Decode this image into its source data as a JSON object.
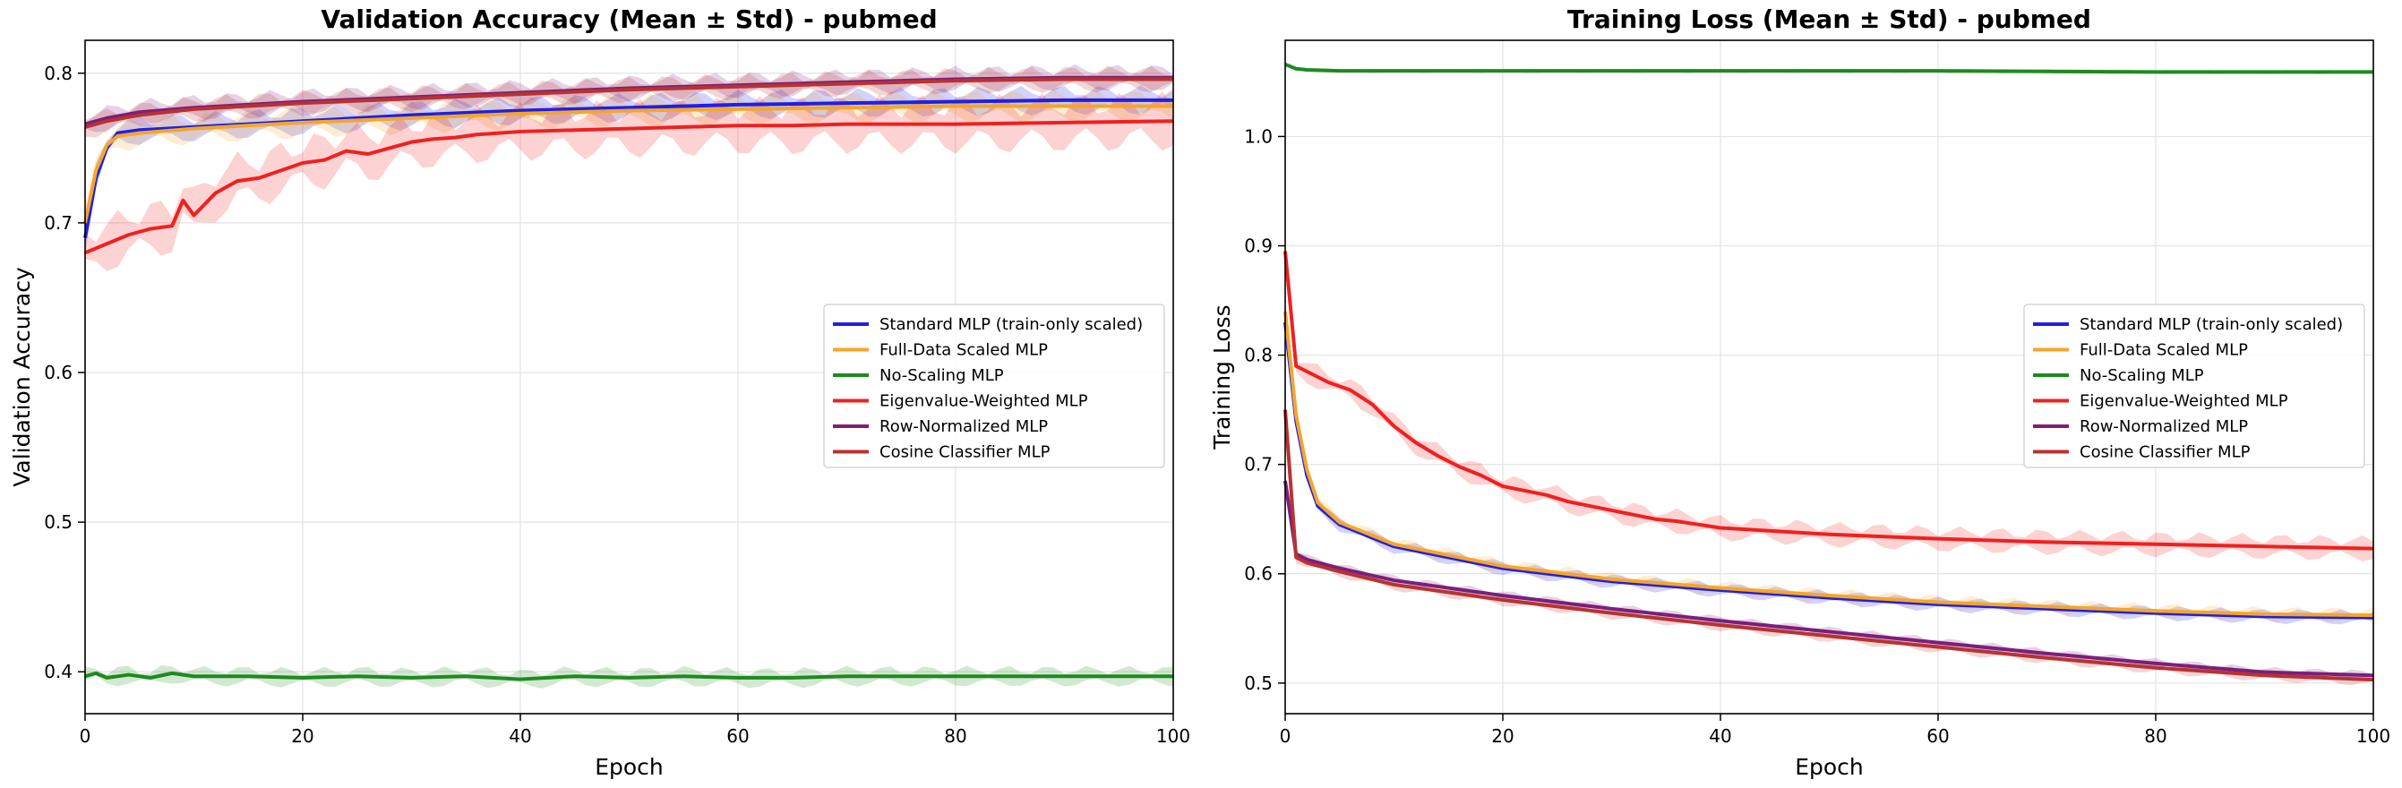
{
  "chart_data": [
    {
      "type": "line",
      "title": "Validation Accuracy (Mean ± Std) - pubmed",
      "xlabel": "Epoch",
      "ylabel": "Validation Accuracy",
      "xlim": [
        0,
        100
      ],
      "ylim": [
        0.372,
        0.822
      ],
      "xticks": [
        0,
        20,
        40,
        60,
        80,
        100
      ],
      "yticks": [
        0.4,
        0.5,
        0.6,
        0.7,
        0.8
      ],
      "xtick_labels": [
        "0",
        "20",
        "40",
        "60",
        "80",
        "100"
      ],
      "ytick_labels": [
        "0.4",
        "0.5",
        "0.6",
        "0.7",
        "0.8"
      ],
      "grid": true,
      "legend_position": "center-right",
      "series": [
        {
          "name": "Standard MLP (train-only scaled)",
          "color": "#1f1fe6",
          "points": [
            [
              0,
              0.69
            ],
            [
              1,
              0.73
            ],
            [
              2,
              0.75
            ],
            [
              3,
              0.76
            ],
            [
              5,
              0.762
            ],
            [
              10,
              0.764
            ],
            [
              20,
              0.768
            ],
            [
              30,
              0.772
            ],
            [
              40,
              0.775
            ],
            [
              50,
              0.777
            ],
            [
              60,
              0.779
            ],
            [
              70,
              0.78
            ],
            [
              80,
              0.781
            ],
            [
              90,
              0.782
            ],
            [
              100,
              0.782
            ]
          ],
          "std": 0.01
        },
        {
          "name": "Full-Data Scaled MLP",
          "color": "#f4a62a",
          "points": [
            [
              0,
              0.7
            ],
            [
              1,
              0.735
            ],
            [
              2,
              0.752
            ],
            [
              3,
              0.758
            ],
            [
              5,
              0.76
            ],
            [
              10,
              0.763
            ],
            [
              20,
              0.767
            ],
            [
              30,
              0.77
            ],
            [
              40,
              0.773
            ],
            [
              50,
              0.775
            ],
            [
              60,
              0.776
            ],
            [
              70,
              0.777
            ],
            [
              80,
              0.778
            ],
            [
              90,
              0.778
            ],
            [
              100,
              0.778
            ]
          ],
          "std": 0.011
        },
        {
          "name": "No-Scaling MLP",
          "color": "#1e8a1e",
          "points": [
            [
              0,
              0.397
            ],
            [
              1,
              0.399
            ],
            [
              2,
              0.396
            ],
            [
              4,
              0.398
            ],
            [
              6,
              0.396
            ],
            [
              8,
              0.399
            ],
            [
              10,
              0.397
            ],
            [
              15,
              0.397
            ],
            [
              20,
              0.396
            ],
            [
              25,
              0.397
            ],
            [
              30,
              0.396
            ],
            [
              35,
              0.397
            ],
            [
              40,
              0.395
            ],
            [
              45,
              0.397
            ],
            [
              50,
              0.396
            ],
            [
              55,
              0.397
            ],
            [
              60,
              0.396
            ],
            [
              65,
              0.396
            ],
            [
              70,
              0.397
            ],
            [
              80,
              0.397
            ],
            [
              90,
              0.397
            ],
            [
              100,
              0.397
            ]
          ],
          "std": 0.007
        },
        {
          "name": "Eigenvalue-Weighted MLP",
          "color": "#f02020",
          "points": [
            [
              0,
              0.68
            ],
            [
              2,
              0.686
            ],
            [
              4,
              0.692
            ],
            [
              6,
              0.696
            ],
            [
              8,
              0.698
            ],
            [
              9,
              0.715
            ],
            [
              10,
              0.705
            ],
            [
              12,
              0.72
            ],
            [
              14,
              0.728
            ],
            [
              16,
              0.73
            ],
            [
              18,
              0.735
            ],
            [
              20,
              0.74
            ],
            [
              22,
              0.742
            ],
            [
              24,
              0.748
            ],
            [
              26,
              0.746
            ],
            [
              28,
              0.75
            ],
            [
              30,
              0.754
            ],
            [
              32,
              0.756
            ],
            [
              34,
              0.757
            ],
            [
              36,
              0.759
            ],
            [
              38,
              0.76
            ],
            [
              40,
              0.761
            ],
            [
              45,
              0.762
            ],
            [
              50,
              0.763
            ],
            [
              55,
              0.764
            ],
            [
              60,
              0.765
            ],
            [
              65,
              0.765
            ],
            [
              70,
              0.766
            ],
            [
              80,
              0.766
            ],
            [
              90,
              0.767
            ],
            [
              100,
              0.768
            ]
          ],
          "std": 0.02
        },
        {
          "name": "Row-Normalized MLP",
          "color": "#7b1f7b",
          "points": [
            [
              0,
              0.766
            ],
            [
              2,
              0.77
            ],
            [
              5,
              0.774
            ],
            [
              10,
              0.777
            ],
            [
              15,
              0.779
            ],
            [
              20,
              0.781
            ],
            [
              30,
              0.784
            ],
            [
              40,
              0.787
            ],
            [
              50,
              0.79
            ],
            [
              60,
              0.792
            ],
            [
              70,
              0.794
            ],
            [
              80,
              0.796
            ],
            [
              90,
              0.797
            ],
            [
              100,
              0.797
            ]
          ],
          "std": 0.009
        },
        {
          "name": "Cosine Classifier MLP",
          "color": "#b83232",
          "points": [
            [
              0,
              0.764
            ],
            [
              2,
              0.768
            ],
            [
              5,
              0.772
            ],
            [
              10,
              0.776
            ],
            [
              15,
              0.778
            ],
            [
              20,
              0.78
            ],
            [
              30,
              0.783
            ],
            [
              40,
              0.786
            ],
            [
              50,
              0.789
            ],
            [
              60,
              0.791
            ],
            [
              70,
              0.793
            ],
            [
              80,
              0.795
            ],
            [
              90,
              0.796
            ],
            [
              100,
              0.796
            ]
          ],
          "std": 0.009
        }
      ]
    },
    {
      "type": "line",
      "title": "Training Loss (Mean ± Std) - pubmed",
      "xlabel": "Epoch",
      "ylabel": "Training Loss",
      "xlim": [
        0,
        100
      ],
      "ylim": [
        0.472,
        1.088
      ],
      "xticks": [
        0,
        20,
        40,
        60,
        80,
        100
      ],
      "yticks": [
        0.5,
        0.6,
        0.7,
        0.8,
        0.9,
        1.0
      ],
      "xtick_labels": [
        "0",
        "20",
        "40",
        "60",
        "80",
        "100"
      ],
      "ytick_labels": [
        "0.5",
        "0.6",
        "0.7",
        "0.8",
        "0.9",
        "1.0"
      ],
      "grid": true,
      "legend_position": "center-right",
      "series": [
        {
          "name": "Standard MLP (train-only scaled)",
          "color": "#1f1fe6",
          "points": [
            [
              0,
              0.83
            ],
            [
              1,
              0.74
            ],
            [
              2,
              0.69
            ],
            [
              3,
              0.662
            ],
            [
              5,
              0.645
            ],
            [
              10,
              0.625
            ],
            [
              20,
              0.605
            ],
            [
              30,
              0.593
            ],
            [
              40,
              0.585
            ],
            [
              50,
              0.578
            ],
            [
              60,
              0.572
            ],
            [
              70,
              0.568
            ],
            [
              80,
              0.564
            ],
            [
              90,
              0.561
            ],
            [
              100,
              0.56
            ]
          ],
          "std": 0.007
        },
        {
          "name": "Full-Data Scaled MLP",
          "color": "#f4a62a",
          "points": [
            [
              0,
              0.84
            ],
            [
              1,
              0.745
            ],
            [
              2,
              0.695
            ],
            [
              3,
              0.665
            ],
            [
              5,
              0.647
            ],
            [
              10,
              0.627
            ],
            [
              20,
              0.607
            ],
            [
              30,
              0.595
            ],
            [
              40,
              0.587
            ],
            [
              50,
              0.58
            ],
            [
              60,
              0.574
            ],
            [
              70,
              0.57
            ],
            [
              80,
              0.566
            ],
            [
              90,
              0.563
            ],
            [
              100,
              0.562
            ]
          ],
          "std": 0.007
        },
        {
          "name": "No-Scaling MLP",
          "color": "#1e8a1e",
          "points": [
            [
              0,
              1.066
            ],
            [
              1,
              1.062
            ],
            [
              2,
              1.061
            ],
            [
              5,
              1.06
            ],
            [
              20,
              1.06
            ],
            [
              40,
              1.06
            ],
            [
              60,
              1.06
            ],
            [
              80,
              1.059
            ],
            [
              100,
              1.059
            ]
          ],
          "std": 0.002
        },
        {
          "name": "Eigenvalue-Weighted MLP",
          "color": "#f02020",
          "points": [
            [
              0,
              0.895
            ],
            [
              1,
              0.79
            ],
            [
              2,
              0.785
            ],
            [
              4,
              0.775
            ],
            [
              6,
              0.768
            ],
            [
              8,
              0.755
            ],
            [
              10,
              0.735
            ],
            [
              12,
              0.72
            ],
            [
              14,
              0.708
            ],
            [
              16,
              0.698
            ],
            [
              18,
              0.69
            ],
            [
              20,
              0.68
            ],
            [
              22,
              0.676
            ],
            [
              24,
              0.672
            ],
            [
              26,
              0.666
            ],
            [
              28,
              0.662
            ],
            [
              30,
              0.658
            ],
            [
              32,
              0.654
            ],
            [
              34,
              0.65
            ],
            [
              36,
              0.648
            ],
            [
              38,
              0.645
            ],
            [
              40,
              0.642
            ],
            [
              45,
              0.639
            ],
            [
              50,
              0.636
            ],
            [
              55,
              0.634
            ],
            [
              60,
              0.632
            ],
            [
              70,
              0.629
            ],
            [
              80,
              0.627
            ],
            [
              90,
              0.625
            ],
            [
              100,
              0.623
            ]
          ],
          "std": 0.012
        },
        {
          "name": "Row-Normalized MLP",
          "color": "#7b1f7b",
          "points": [
            [
              0,
              0.685
            ],
            [
              1,
              0.618
            ],
            [
              2,
              0.613
            ],
            [
              5,
              0.605
            ],
            [
              10,
              0.594
            ],
            [
              20,
              0.58
            ],
            [
              30,
              0.568
            ],
            [
              40,
              0.557
            ],
            [
              50,
              0.547
            ],
            [
              60,
              0.537
            ],
            [
              70,
              0.527
            ],
            [
              80,
              0.518
            ],
            [
              90,
              0.51
            ],
            [
              100,
              0.507
            ]
          ],
          "std": 0.005
        },
        {
          "name": "Cosine Classifier MLP",
          "color": "#b83232",
          "points": [
            [
              0,
              0.75
            ],
            [
              1,
              0.615
            ],
            [
              2,
              0.61
            ],
            [
              5,
              0.602
            ],
            [
              10,
              0.59
            ],
            [
              20,
              0.576
            ],
            [
              30,
              0.564
            ],
            [
              40,
              0.553
            ],
            [
              50,
              0.543
            ],
            [
              60,
              0.533
            ],
            [
              70,
              0.523
            ],
            [
              80,
              0.514
            ],
            [
              90,
              0.507
            ],
            [
              100,
              0.503
            ]
          ],
          "std": 0.006
        }
      ]
    }
  ]
}
